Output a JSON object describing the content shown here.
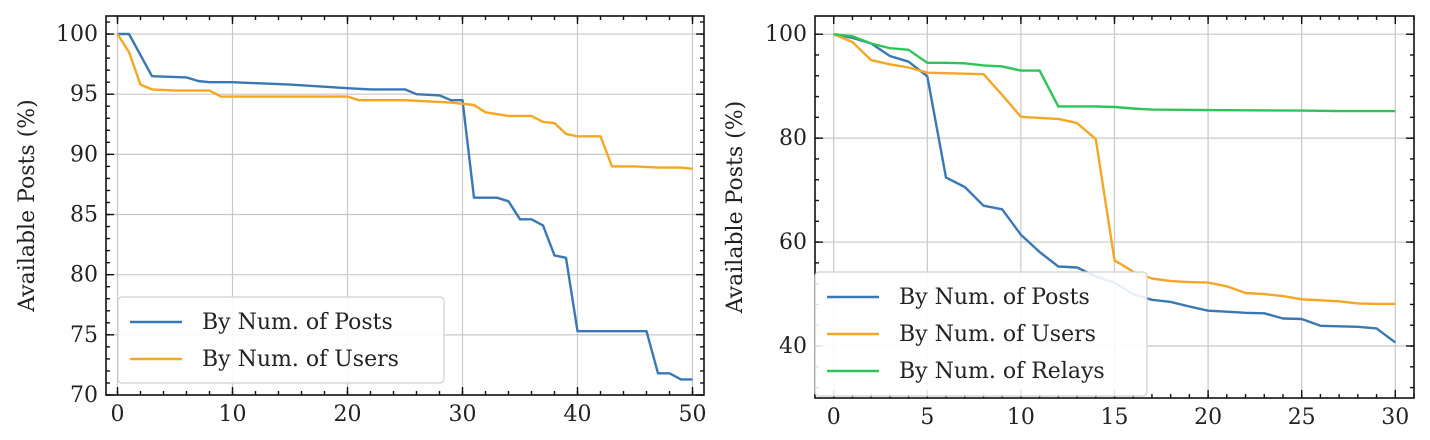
{
  "chart_data": [
    {
      "type": "line",
      "title": "",
      "xlabel": "",
      "ylabel": "Available Posts (%)",
      "xlim": [
        -1,
        51
      ],
      "ylim": [
        70,
        101.5
      ],
      "xticks": [
        0,
        10,
        20,
        30,
        40,
        50
      ],
      "yticks": [
        70,
        75,
        80,
        85,
        90,
        95,
        100
      ],
      "grid": true,
      "legend": "lower-left",
      "series": [
        {
          "name": "By Num. of Posts",
          "color": "#3a78b5",
          "x": [
            0,
            1,
            3,
            6,
            7,
            8,
            10,
            15,
            20,
            22,
            25,
            26,
            28,
            29,
            30,
            31,
            33,
            34,
            35,
            36,
            37,
            38,
            39,
            40,
            41,
            46,
            47,
            48,
            49,
            50
          ],
          "y": [
            100,
            100,
            96.5,
            96.4,
            96.1,
            96.0,
            96.0,
            95.8,
            95.5,
            95.4,
            95.4,
            95.0,
            94.9,
            94.5,
            94.5,
            86.4,
            86.4,
            86.1,
            84.6,
            84.6,
            84.1,
            81.6,
            81.4,
            75.3,
            75.3,
            75.3,
            71.8,
            71.8,
            71.3,
            71.3
          ]
        },
        {
          "name": "By Num. of Users",
          "color": "#f5a623",
          "x": [
            0,
            1,
            2,
            3,
            5,
            8,
            9,
            15,
            20,
            21,
            25,
            29,
            31,
            32,
            34,
            36,
            37,
            38,
            39,
            40,
            42,
            43,
            45,
            47,
            49,
            50
          ],
          "y": [
            100,
            98.5,
            95.8,
            95.4,
            95.3,
            95.3,
            94.8,
            94.8,
            94.8,
            94.5,
            94.5,
            94.3,
            94.1,
            93.5,
            93.2,
            93.2,
            92.7,
            92.6,
            91.7,
            91.5,
            91.5,
            89.0,
            89.0,
            88.9,
            88.9,
            88.8
          ]
        }
      ]
    },
    {
      "type": "line",
      "title": "",
      "xlabel": "",
      "ylabel": "Available Posts (%)",
      "xlim": [
        -1,
        31
      ],
      "ylim": [
        30,
        103.5
      ],
      "xticks": [
        0,
        5,
        10,
        15,
        20,
        25,
        30
      ],
      "yticks": [
        40,
        60,
        80,
        100
      ],
      "grid": true,
      "legend": "lower-left",
      "series": [
        {
          "name": "By Num. of Posts",
          "color": "#3a78b5",
          "x": [
            0,
            1,
            2,
            3,
            4,
            5,
            6,
            7,
            8,
            9,
            10,
            11,
            12,
            13,
            14,
            15,
            16,
            17,
            18,
            19,
            20,
            21,
            22,
            23,
            24,
            25,
            26,
            27,
            28,
            29,
            30
          ],
          "y": [
            100,
            99.3,
            98.2,
            95.8,
            94.7,
            91.9,
            72.4,
            70.6,
            67.0,
            66.3,
            61.4,
            58.1,
            55.3,
            55.1,
            53.4,
            52.2,
            50.0,
            48.9,
            48.5,
            47.6,
            46.8,
            46.6,
            46.4,
            46.3,
            45.3,
            45.2,
            43.9,
            43.8,
            43.7,
            43.4,
            40.7
          ]
        },
        {
          "name": "By Num. of Users",
          "color": "#f5a623",
          "x": [
            0,
            1,
            2,
            3,
            4,
            5,
            6,
            7,
            8,
            9,
            10,
            11,
            12,
            13,
            14,
            15,
            16,
            17,
            18,
            19,
            20,
            21,
            22,
            23,
            24,
            25,
            26,
            27,
            28,
            29,
            30
          ],
          "y": [
            100,
            98.5,
            95.0,
            94.2,
            93.6,
            92.6,
            92.5,
            92.4,
            92.3,
            88.3,
            84.1,
            83.9,
            83.7,
            82.9,
            79.8,
            56.5,
            54.3,
            53.0,
            52.5,
            52.3,
            52.2,
            51.5,
            50.2,
            50.0,
            49.6,
            49.0,
            48.8,
            48.6,
            48.2,
            48.1,
            48.1
          ]
        },
        {
          "name": "By Num. of Relays",
          "color": "#2ec45a",
          "x": [
            0,
            1,
            2,
            3,
            4,
            5,
            6,
            7,
            8,
            9,
            10,
            11,
            12,
            13,
            14,
            15,
            16,
            17,
            20,
            25,
            27,
            30
          ],
          "y": [
            100,
            99.6,
            98.2,
            97.3,
            97.0,
            94.5,
            94.5,
            94.4,
            94.0,
            93.8,
            93.0,
            93.0,
            86.1,
            86.1,
            86.1,
            86.0,
            85.7,
            85.5,
            85.4,
            85.3,
            85.2,
            85.2
          ]
        }
      ]
    }
  ]
}
